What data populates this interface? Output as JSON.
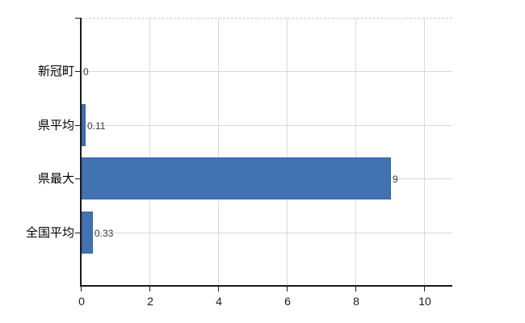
{
  "chart_data": {
    "type": "bar",
    "orientation": "horizontal",
    "title": "",
    "xlabel": "",
    "ylabel": "",
    "categories": [
      "新冠町",
      "県平均",
      "県最大",
      "全国平均"
    ],
    "values": [
      0,
      0.11,
      9,
      0.33
    ],
    "value_labels": [
      "0",
      "0.11",
      "9",
      "0.33"
    ],
    "x_ticks": [
      0,
      2,
      4,
      6,
      8,
      10
    ],
    "x_tick_labels": [
      "0",
      "2",
      "4",
      "6",
      "8",
      "10"
    ],
    "xlim": [
      0,
      10.8
    ],
    "grid": "vertical gridlines at labeled ticks, horizontal gridline through each category row, dashed top border",
    "legend_position": "none",
    "colors": {
      "bar": "#4272b2",
      "bar_border": "#35619f",
      "vertical_gridline": "#d9d9d9",
      "horizontal_gridline": "#d7dcd7",
      "top_dashed_line": "#cccccc",
      "axis": "#1a1a1a",
      "category_text": "#000000",
      "value_text": "#3a3a3a",
      "background": "#ffffff"
    }
  }
}
